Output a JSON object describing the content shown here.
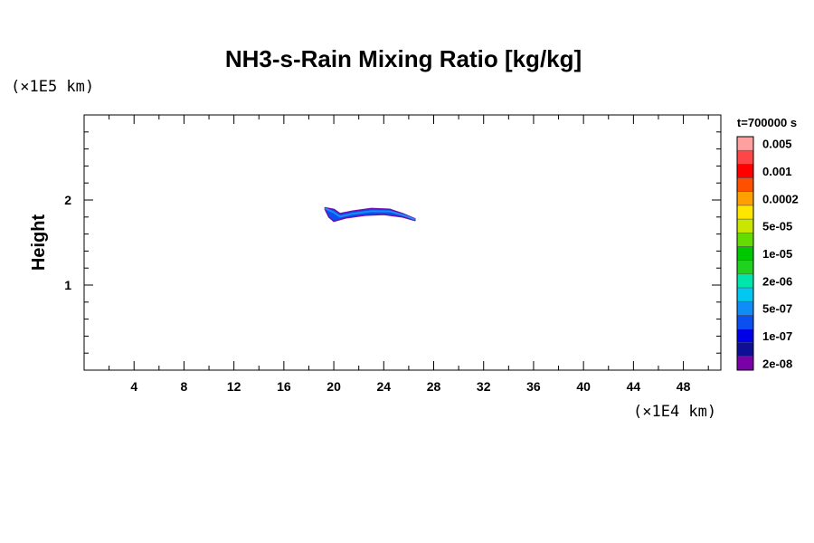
{
  "chart_data": {
    "type": "contour",
    "title": "NH3-s-Rain Mixing Ratio [kg/kg]",
    "xlabel": "",
    "ylabel": "Height",
    "x_unit": "(×1E4 km)",
    "y_unit": "(×1E5 km)",
    "time_label": "t=700000 s",
    "xlim": [
      0,
      51
    ],
    "ylim": [
      0,
      3
    ],
    "x_ticks": [
      4,
      8,
      12,
      16,
      20,
      24,
      28,
      32,
      36,
      40,
      44,
      48
    ],
    "y_ticks": [
      1,
      2
    ],
    "x_minor_step": 2,
    "y_minor_step": 0.2,
    "colorbar": {
      "colors": [
        "#7a00a8",
        "#0f0f96",
        "#0000e6",
        "#0a50f0",
        "#0f8cf5",
        "#00c8f0",
        "#00e6aa",
        "#1ed21e",
        "#00c800",
        "#64dc00",
        "#c8e600",
        "#ffe600",
        "#ffa000",
        "#ff5000",
        "#ff0000",
        "#ff4646",
        "#ffa0a0"
      ],
      "labels": [
        "2e-08",
        "1e-07",
        "5e-07",
        "2e-06",
        "1e-05",
        "5e-05",
        "0.0002",
        "0.001",
        "0.005"
      ],
      "label_slots": [
        1,
        3,
        5,
        7,
        9,
        11,
        13,
        15,
        17
      ]
    },
    "feature": {
      "description": "thin band of mixing ratio near height 1.8 spanning x≈19.5–26.5",
      "upper_edge": [
        [
          19.3,
          1.91
        ],
        [
          20.0,
          1.89
        ],
        [
          20.5,
          1.84
        ],
        [
          21.5,
          1.87
        ],
        [
          23.0,
          1.9
        ],
        [
          24.5,
          1.89
        ],
        [
          25.5,
          1.84
        ],
        [
          26.5,
          1.78
        ]
      ],
      "lower_edge": [
        [
          26.5,
          1.76
        ],
        [
          25.5,
          1.8
        ],
        [
          24.0,
          1.83
        ],
        [
          22.5,
          1.82
        ],
        [
          21.0,
          1.79
        ],
        [
          20.0,
          1.75
        ],
        [
          19.6,
          1.8
        ],
        [
          19.3,
          1.89
        ]
      ]
    }
  }
}
